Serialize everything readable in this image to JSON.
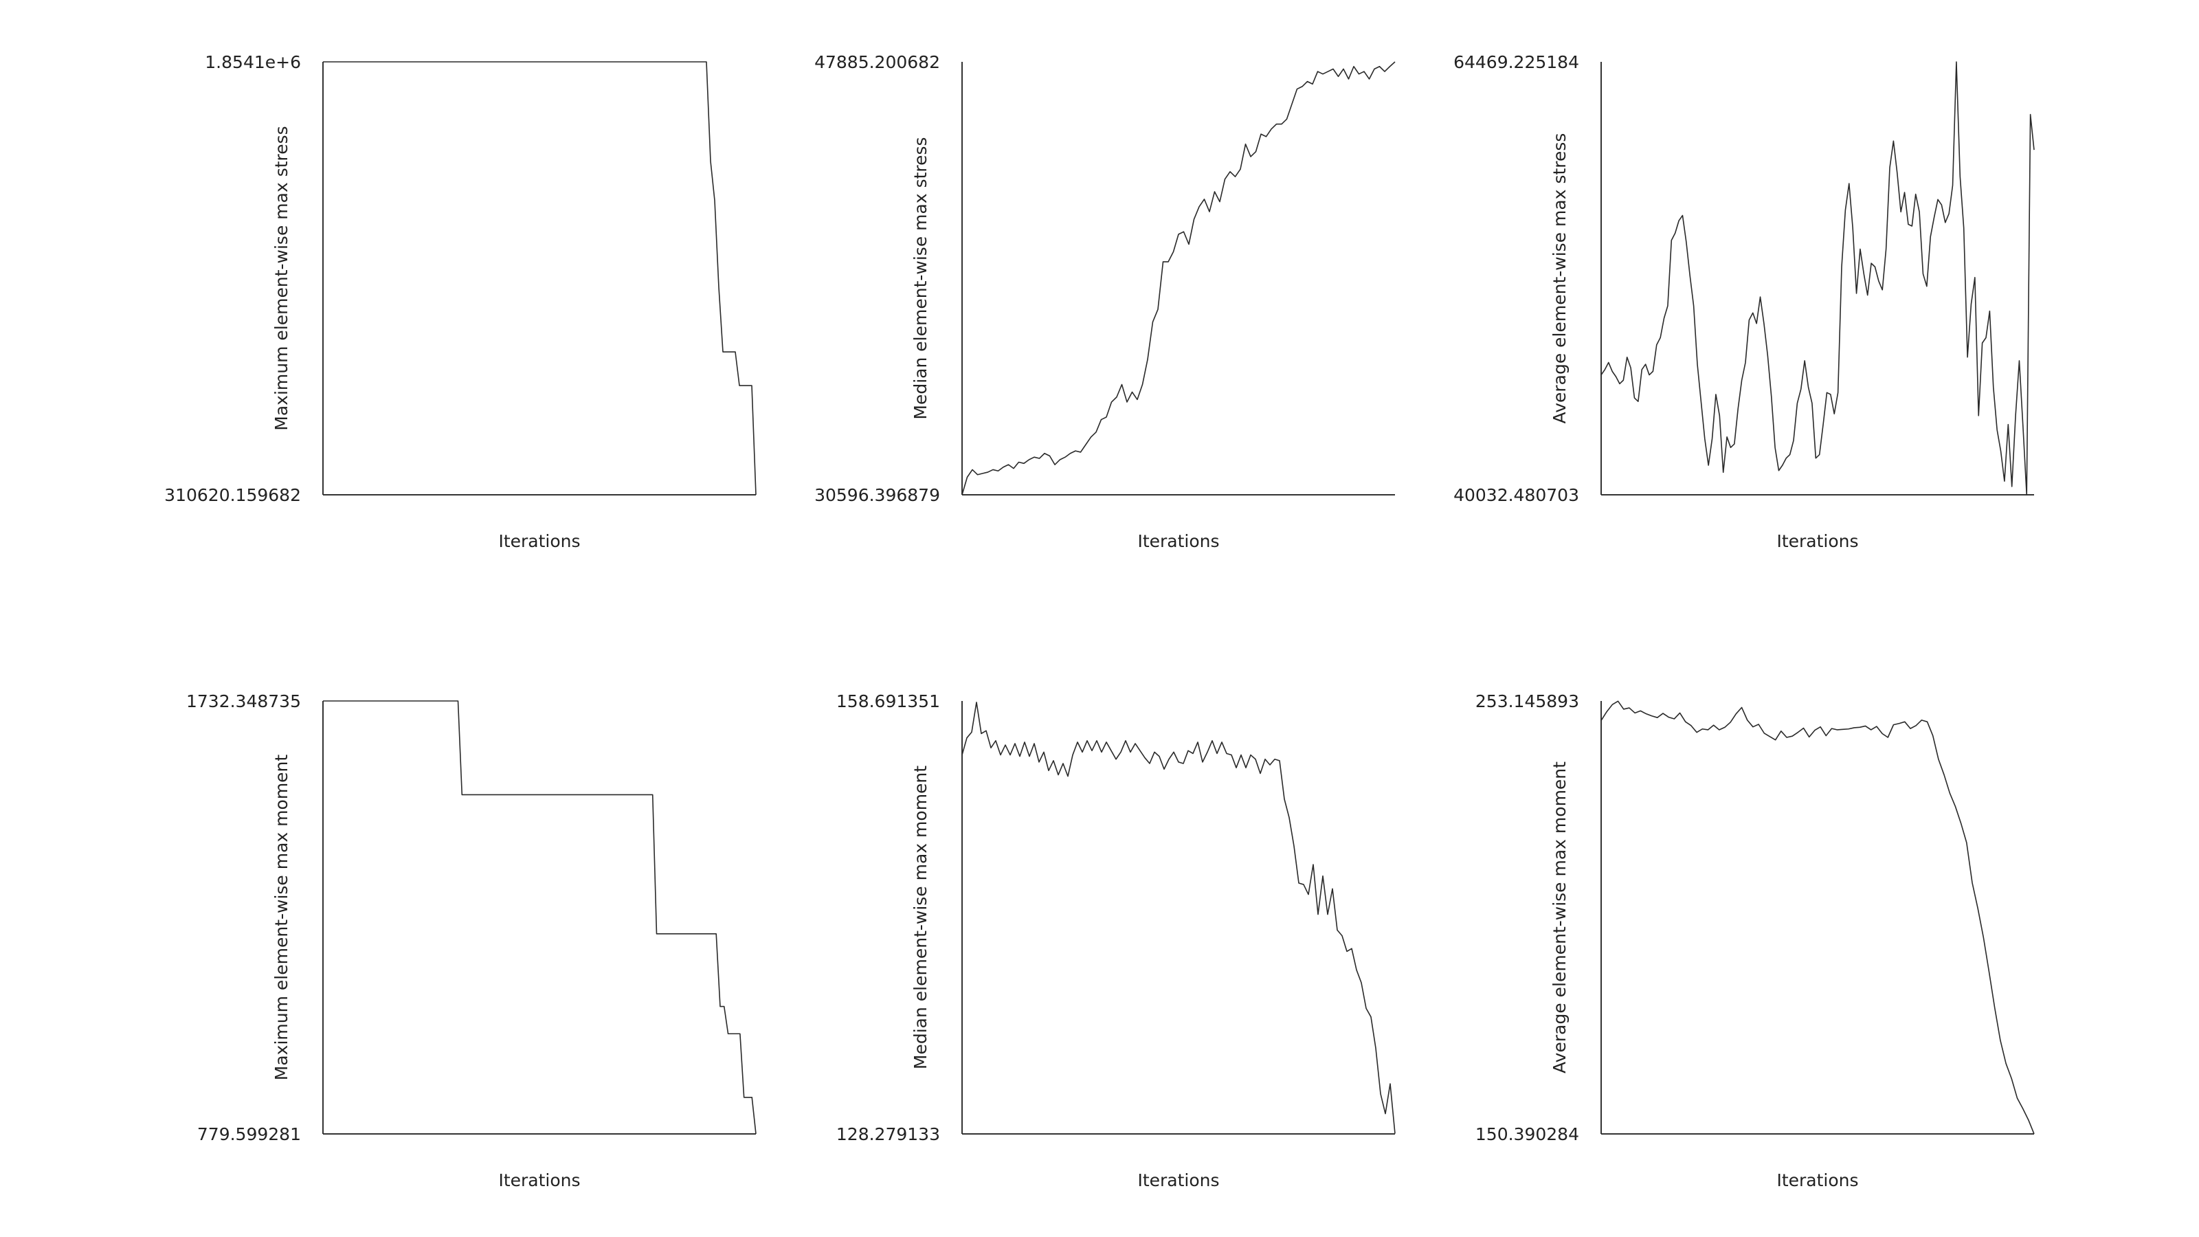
{
  "chart_data": [
    {
      "type": "line",
      "panel": "top-left",
      "xlabel": "Iterations",
      "ylabel": "Maximum element-wise max stress",
      "ylim": [
        310620.159682,
        1854100
      ],
      "ytick_labels": [
        "310620.159682",
        "1.8541e+6"
      ],
      "grid": false,
      "series": [
        {
          "values": [
            1854100,
            1854100,
            1854100,
            1854100,
            1854100,
            1854100,
            1854100,
            1854100,
            1854100,
            1854100,
            1854100,
            1854100,
            1854100,
            1854100,
            1854100,
            1854100,
            1854100,
            1854100,
            1854100,
            1854100,
            1854100,
            1854100,
            1854100,
            1854100,
            1854100,
            1854100,
            1854100,
            1854100,
            1854100,
            1854100,
            1854100,
            1854100,
            1854100,
            1854100,
            1854100,
            1854100,
            1854100,
            1854100,
            1854100,
            1854100,
            1854100,
            1854100,
            1854100,
            1854100,
            1854100,
            1854100,
            1854100,
            1854100,
            1854100,
            1854100,
            1854100,
            1854100,
            1854100,
            1854100,
            1854100,
            1854100,
            1854100,
            1854100,
            1854100,
            1854100,
            1854100,
            1854100,
            1854100,
            1854100,
            1854100,
            1854100,
            1854100,
            1854100,
            1854100,
            1854100,
            1854100,
            1854100,
            1854100,
            1854100,
            1854100,
            1854100,
            1854100,
            1854100,
            1854100,
            1854100,
            1854100,
            1854100,
            1854100,
            1854100,
            1854100,
            1854100,
            1854100,
            1854100,
            1854100,
            1854100,
            1854100,
            1854100,
            1854100,
            1854100,
            1500000,
            1360000,
            1050000,
            820000,
            820000,
            820000,
            820000,
            700000,
            700000,
            700000,
            700000,
            310620.159682
          ]
        }
      ]
    },
    {
      "type": "line",
      "panel": "top-middle",
      "xlabel": "Iterations",
      "ylabel": "Median element-wise max stress",
      "ylim": [
        30596.396879,
        47885.200682
      ],
      "ytick_labels": [
        "30596.396879",
        "47885.200682"
      ],
      "grid": false,
      "series": [
        {
          "values": [
            30596.4,
            31300,
            31600,
            31400,
            31450,
            31500,
            31600,
            31550,
            31700,
            31800,
            31650,
            31900,
            31850,
            32000,
            32100,
            32050,
            32250,
            32150,
            31800,
            32000,
            32100,
            32250,
            32350,
            32300,
            32600,
            32900,
            33100,
            33600,
            33700,
            34300,
            34500,
            35000,
            34300,
            34700,
            34400,
            35000,
            36000,
            37500,
            38000,
            39900,
            39900,
            40300,
            41000,
            41100,
            40600,
            41600,
            42100,
            42400,
            41900,
            42700,
            42300,
            43200,
            43500,
            43300,
            43600,
            44600,
            44100,
            44300,
            45000,
            44900,
            45200,
            45400,
            45400,
            45600,
            46200,
            46800,
            46900,
            47100,
            47000,
            47500,
            47400,
            47500,
            47600,
            47300,
            47600,
            47200,
            47700,
            47400,
            47500,
            47200,
            47600,
            47700,
            47500,
            47700,
            47885.2
          ]
        }
      ]
    },
    {
      "type": "line",
      "panel": "top-right",
      "xlabel": "Iterations",
      "ylabel": "Average element-wise max stress",
      "ylim": [
        40032.480703,
        64469.225184
      ],
      "ytick_labels": [
        "40032.480703",
        "64469.225184"
      ],
      "grid": false,
      "series": [
        {
          "values": [
            46800,
            47100,
            47500,
            47000,
            46700,
            46300,
            46500,
            47800,
            47200,
            45500,
            45300,
            47100,
            47400,
            46800,
            47000,
            48500,
            48900,
            50000,
            50700,
            54400,
            54800,
            55500,
            55800,
            54300,
            52400,
            50700,
            47400,
            45300,
            43200,
            41700,
            43200,
            45700,
            44500,
            41300,
            43300,
            42700,
            42900,
            44900,
            46500,
            47500,
            49900,
            50300,
            49700,
            51200,
            49700,
            47900,
            45600,
            42700,
            41400,
            41700,
            42100,
            42300,
            43100,
            45200,
            46000,
            47600,
            46100,
            45200,
            42100,
            42300,
            44000,
            45800,
            45700,
            44600,
            45800,
            52900,
            56100,
            57600,
            55100,
            51400,
            53900,
            52500,
            51300,
            53100,
            52900,
            52100,
            51600,
            53900,
            58500,
            60000,
            58200,
            56000,
            57100,
            55300,
            55200,
            57000,
            56000,
            52500,
            51800,
            54600,
            55700,
            56700,
            56400,
            55400,
            55900,
            57500,
            64469.2,
            58000,
            55100,
            47800,
            50800,
            52300,
            44500,
            48600,
            48900,
            50400,
            46100,
            43700,
            42500,
            40800,
            44000,
            40500,
            44500,
            47600,
            43900,
            40032.5,
            61500,
            59500
          ]
        }
      ]
    },
    {
      "type": "line",
      "panel": "bottom-left",
      "xlabel": "Iterations",
      "ylabel": "Maximum element-wise max moment",
      "ylim": [
        779.599281,
        1732.348735
      ],
      "ytick_labels": [
        "779.599281",
        "1732.348735"
      ],
      "grid": false,
      "series": [
        {
          "values": [
            1732.35,
            1732.35,
            1732.35,
            1732.35,
            1732.35,
            1732.35,
            1732.35,
            1732.35,
            1732.35,
            1732.35,
            1732.35,
            1732.35,
            1732.35,
            1732.35,
            1732.35,
            1732.35,
            1732.35,
            1732.35,
            1732.35,
            1732.35,
            1732.35,
            1732.35,
            1732.35,
            1732.35,
            1732.35,
            1732.35,
            1732.35,
            1732.35,
            1732.35,
            1732.35,
            1732.35,
            1732.35,
            1732.35,
            1732.35,
            1732.35,
            1526,
            1526,
            1526,
            1526,
            1526,
            1526,
            1526,
            1526,
            1526,
            1526,
            1526,
            1526,
            1526,
            1526,
            1526,
            1526,
            1526,
            1526,
            1526,
            1526,
            1526,
            1526,
            1526,
            1526,
            1526,
            1526,
            1526,
            1526,
            1526,
            1526,
            1526,
            1526,
            1526,
            1526,
            1526,
            1526,
            1526,
            1526,
            1526,
            1526,
            1526,
            1526,
            1526,
            1526,
            1526,
            1526,
            1526,
            1526,
            1526,
            1220,
            1220,
            1220,
            1220,
            1220,
            1220,
            1220,
            1220,
            1220,
            1220,
            1220,
            1220,
            1220,
            1220,
            1220,
            1220,
            1060,
            1060,
            1000,
            1000,
            1000,
            1000,
            860,
            860,
            860,
            779.6
          ]
        }
      ]
    },
    {
      "type": "line",
      "panel": "bottom-middle",
      "xlabel": "Iterations",
      "ylabel": "Median element-wise max moment",
      "ylim": [
        128.279133,
        158.691351
      ],
      "ytick_labels": [
        "128.279133",
        "158.691351"
      ],
      "grid": false,
      "series": [
        {
          "values": [
            154.9,
            156.1,
            156.5,
            158.6,
            156.4,
            156.6,
            155.4,
            155.9,
            154.9,
            155.6,
            154.9,
            155.7,
            154.8,
            155.8,
            154.8,
            155.7,
            154.4,
            155.1,
            153.8,
            154.5,
            153.5,
            154.3,
            153.4,
            154.9,
            155.8,
            155.1,
            155.9,
            155.2,
            155.9,
            155.1,
            155.8,
            155.2,
            154.6,
            155.1,
            155.9,
            155.1,
            155.7,
            155.2,
            154.7,
            154.3,
            155.1,
            154.8,
            153.9,
            154.6,
            155.1,
            154.4,
            154.3,
            155.2,
            155.0,
            155.8,
            154.4,
            155.1,
            155.9,
            155.0,
            155.8,
            155.0,
            154.9,
            154.0,
            154.9,
            154.0,
            154.9,
            154.6,
            153.6,
            154.6,
            154.2,
            154.6,
            154.5,
            151.8,
            150.5,
            148.5,
            145.9,
            145.8,
            145.1,
            147.2,
            143.7,
            146.4,
            143.7,
            145.5,
            142.6,
            142.2,
            141.1,
            141.3,
            139.8,
            138.9,
            137.1,
            136.5,
            134.3,
            131.1,
            129.7,
            131.8,
            128.3
          ]
        }
      ]
    },
    {
      "type": "line",
      "panel": "bottom-right",
      "xlabel": "Iterations",
      "ylabel": "Average element-wise max moment",
      "ylim": [
        150.390284,
        253.145893
      ],
      "ytick_labels": [
        "150.390284",
        "253.145893"
      ],
      "grid": false,
      "series": [
        {
          "values": [
            248.5,
            250.6,
            252.3,
            253.1,
            251.2,
            251.5,
            250.3,
            250.8,
            250.1,
            249.6,
            249.2,
            250.2,
            249.3,
            248.9,
            250.3,
            248.2,
            247.3,
            245.7,
            246.5,
            246.3,
            247.4,
            246.3,
            246.9,
            248.1,
            250.1,
            251.6,
            248.6,
            247.0,
            247.6,
            245.5,
            244.7,
            243.9,
            246.0,
            244.5,
            244.8,
            245.7,
            246.7,
            244.6,
            246.2,
            247.0,
            244.9,
            246.6,
            246.3,
            246.4,
            246.5,
            246.8,
            246.9,
            247.2,
            246.3,
            247.1,
            245.4,
            244.5,
            247.5,
            247.8,
            248.2,
            246.6,
            247.3,
            248.6,
            248.2,
            244.9,
            239.3,
            235.6,
            231.3,
            228.1,
            224.1,
            219.5,
            210.0,
            203.9,
            197.0,
            188.8,
            180.3,
            172.6,
            167.1,
            163.5,
            158.9,
            156.4,
            153.7,
            150.4
          ]
        }
      ]
    }
  ]
}
